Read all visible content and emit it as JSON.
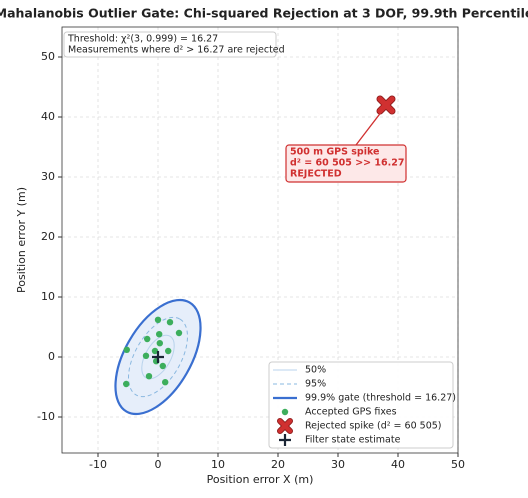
{
  "chart_data": {
    "type": "scatter",
    "title": "Mahalanobis Outlier Gate: Chi-squared Rejection at 3 DOF, 99.9th Percentile",
    "xlabel": "Position error X (m)",
    "ylabel": "Position error Y (m)",
    "xlim": [
      -16,
      50
    ],
    "ylim": [
      -16,
      55
    ],
    "xticks": [
      -10,
      0,
      10,
      20,
      30,
      40,
      50
    ],
    "yticks": [
      -10,
      0,
      10,
      20,
      30,
      40,
      50
    ],
    "grid": true,
    "legend": "lower right",
    "info_box": [
      "Threshold: χ²(3, 0.999) = 16.27",
      "Measurements where d² > 16.27 are rejected"
    ],
    "spike_annotation": [
      "500 m GPS spike",
      "d² = 60 505  >>  16.27",
      "REJECTED"
    ],
    "series": [
      {
        "name": "50%",
        "kind": "ellipse",
        "color": "#b9d3ec",
        "center": [
          0,
          0
        ],
        "semi_axes": [
          4,
          2.1
        ],
        "angle": 60
      },
      {
        "name": "95%",
        "kind": "ellipse",
        "dashed": true,
        "color": "#8ab8e0",
        "center": [
          0,
          0
        ],
        "semi_axes": [
          7.3,
          3.8
        ],
        "angle": 60
      },
      {
        "name": "99.9% gate (threshold = 16.27)",
        "kind": "ellipse",
        "color": "#3a6fd0",
        "fill": "#e6eefa",
        "center": [
          0,
          0
        ],
        "semi_axes": [
          10.5,
          5.5
        ],
        "angle": 60
      },
      {
        "name": "Accepted GPS fixes",
        "kind": "points",
        "marker": "circle",
        "color": "#3cae5c",
        "x": [
          0,
          2,
          3.5,
          0.2,
          -1.8,
          0.3,
          1.7,
          -5.2,
          -2,
          -0.3,
          0.8,
          -1.5,
          1.2,
          -5.3,
          -0.5
        ],
        "y": [
          6.2,
          5.8,
          4,
          3.8,
          3,
          2.3,
          1,
          1.2,
          0.2,
          -0.7,
          -1.5,
          -3.2,
          -4.2,
          -4.5,
          1
        ]
      },
      {
        "name": "Rejected spike  (d² = 60 505)",
        "kind": "points",
        "marker": "x",
        "color": "#d03030",
        "x": [
          38
        ],
        "y": [
          42
        ]
      },
      {
        "name": "Filter state estimate",
        "kind": "points",
        "marker": "plus",
        "color": "#1a2535",
        "x": [
          0
        ],
        "y": [
          0
        ]
      }
    ]
  }
}
